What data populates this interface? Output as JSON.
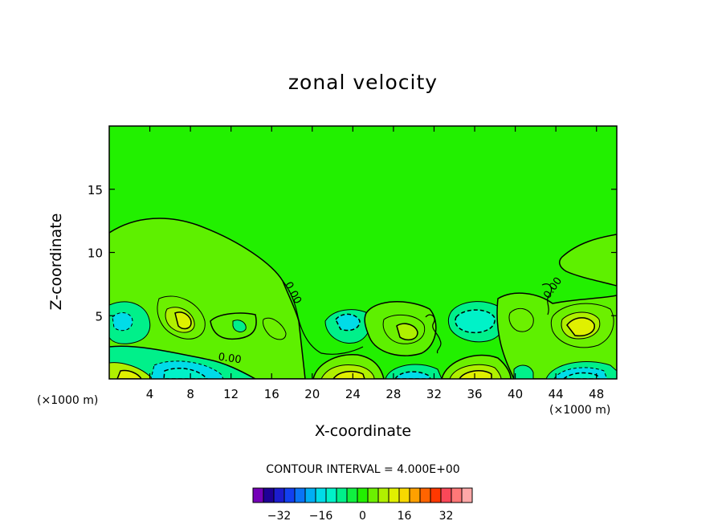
{
  "chart_data": {
    "type": "heatmap",
    "title": "zonal velocity",
    "xlabel": "X-coordinate",
    "ylabel": "Z-coordinate",
    "x_unit": "(×1000 m)",
    "xlim": [
      0,
      50
    ],
    "ylim": [
      0,
      20
    ],
    "x_ticks": [
      4,
      8,
      12,
      16,
      20,
      24,
      28,
      32,
      36,
      40,
      44,
      48
    ],
    "y_ticks": [
      5,
      10,
      15
    ],
    "contour_interval_label": "CONTOUR INTERVAL = 4.000E+00",
    "contour_interval": 4,
    "contour_labels": [
      {
        "text": "0.00",
        "x": 17.3,
        "z": 7.5
      },
      {
        "text": "0.00",
        "x": 10.7,
        "z": 1.5
      },
      {
        "text": "0.00",
        "x": 43.3,
        "z": 6.3
      }
    ],
    "features": [
      {
        "kind": "positive",
        "x": 6,
        "z": 8.5,
        "value": 4
      },
      {
        "kind": "positive",
        "x": 7.5,
        "z": 4.8,
        "value": 12
      },
      {
        "kind": "negative",
        "x": 2,
        "z": 4.8,
        "value": -8
      },
      {
        "kind": "positive",
        "x": 12.5,
        "z": 4.2,
        "value": 4
      },
      {
        "kind": "negative",
        "x": 8,
        "z": 0.6,
        "value": -12
      },
      {
        "kind": "positive",
        "x": 2,
        "z": 0.5,
        "value": 12
      },
      {
        "kind": "negative",
        "x": 23,
        "z": 4.5,
        "value": -8
      },
      {
        "kind": "positive",
        "x": 23.5,
        "z": 0.5,
        "value": 16
      },
      {
        "kind": "positive",
        "x": 29.5,
        "z": 3.8,
        "value": 12
      },
      {
        "kind": "negative",
        "x": 29.5,
        "z": 0.5,
        "value": -8
      },
      {
        "kind": "negative",
        "x": 35.5,
        "z": 4.5,
        "value": -12
      },
      {
        "kind": "positive",
        "x": 36,
        "z": 0.5,
        "value": 16
      },
      {
        "kind": "positive",
        "x": 46.5,
        "z": 4.3,
        "value": 16
      },
      {
        "kind": "negative",
        "x": 46.5,
        "z": 0.5,
        "value": -12
      },
      {
        "kind": "positive",
        "x": 47.5,
        "z": 9.5,
        "value": 4
      }
    ],
    "colorbar": {
      "colors": [
        "#7400b8",
        "#1e0096",
        "#1c1cce",
        "#1240f0",
        "#0a74f6",
        "#00aef4",
        "#00dce8",
        "#00f2c8",
        "#00f08a",
        "#10f040",
        "#22f000",
        "#6cf000",
        "#b0f000",
        "#e0f000",
        "#f8d800",
        "#ffa000",
        "#ff6400",
        "#ff3800",
        "#fa4858",
        "#ff7878",
        "#ffa8a8"
      ],
      "tick_labels": [
        "−32",
        "−16",
        "0",
        "16",
        "32"
      ],
      "tick_values": [
        -32,
        -16,
        0,
        16,
        32
      ],
      "vmin": -42,
      "vmax": 42
    }
  }
}
